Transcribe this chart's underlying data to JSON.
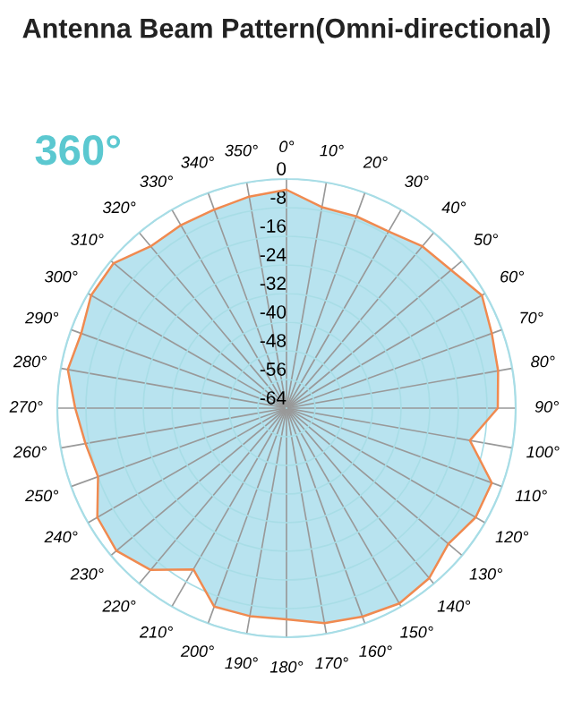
{
  "chart_data": {
    "type": "radar",
    "title": "Antenna Beam Pattern(Omni-directional)",
    "annotations": [
      "360°"
    ],
    "categories": [
      "0°",
      "10°",
      "20°",
      "30°",
      "40°",
      "50°",
      "60°",
      "70°",
      "80°",
      "90°",
      "100°",
      "110°",
      "120°",
      "130°",
      "140°",
      "150°",
      "160°",
      "170°",
      "180°",
      "190°",
      "200°",
      "210°",
      "220°",
      "230°",
      "240°",
      "250°",
      "260°",
      "270°",
      "280°",
      "290°",
      "300°",
      "310°",
      "320°",
      "330°",
      "340°",
      "350°"
    ],
    "series": [
      {
        "color": "#b8e3ef",
        "values": [
          -3,
          -7,
          -7,
          -7,
          -5,
          -4,
          -1,
          -3,
          -4,
          -5,
          -12,
          -3,
          -3,
          -5,
          -2,
          -1,
          -2,
          -3,
          -5,
          -5,
          -5,
          -12,
          -5,
          -2,
          -3,
          -8,
          -7,
          -5,
          -2,
          -3,
          -1,
          -1,
          -5,
          -5,
          -5,
          -4
        ]
      }
    ],
    "ylim": [
      -64,
      0
    ],
    "yticks": [
      0,
      -8,
      -16,
      -24,
      -32,
      -40,
      -48,
      -56,
      -64
    ],
    "grid": true,
    "marker": "none",
    "line_style": "solid"
  }
}
